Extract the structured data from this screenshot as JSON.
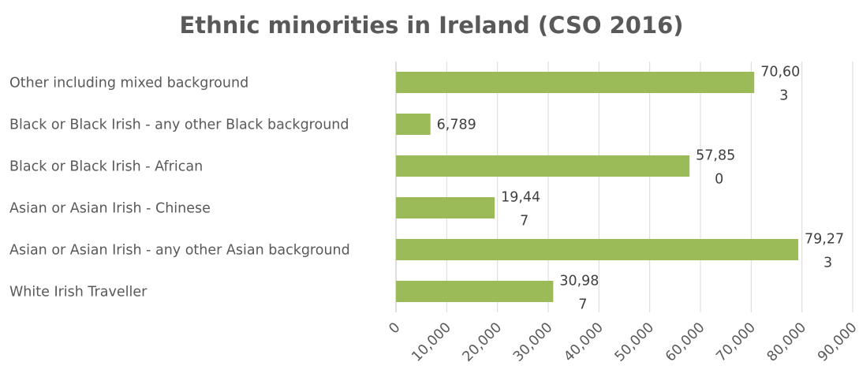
{
  "chart_data": {
    "type": "bar",
    "orientation": "horizontal",
    "title": "Ethnic minorities in Ireland (CSO 2016)",
    "categories": [
      "Other including mixed background",
      "Black or Black Irish - any other Black background",
      "Black or Black Irish - African",
      "Asian or Asian Irish - Chinese",
      "Asian or Asian Irish - any other Asian background",
      "White Irish Traveller"
    ],
    "values": [
      70603,
      6789,
      57850,
      19447,
      79273,
      30987
    ],
    "data_labels": [
      [
        "70,60",
        "3"
      ],
      [
        "6,789"
      ],
      [
        "57,85",
        "0"
      ],
      [
        "19,44",
        "7"
      ],
      [
        "79,27",
        "3"
      ],
      [
        "30,98",
        "7"
      ]
    ],
    "xticks": [
      "0",
      "10,000",
      "20,000",
      "30,000",
      "40,000",
      "50,000",
      "60,000",
      "70,000",
      "80,000",
      "90,000"
    ],
    "xlim": [
      0,
      90000
    ],
    "grid": true,
    "legend": "none",
    "bar_color": "#9bbb59"
  }
}
